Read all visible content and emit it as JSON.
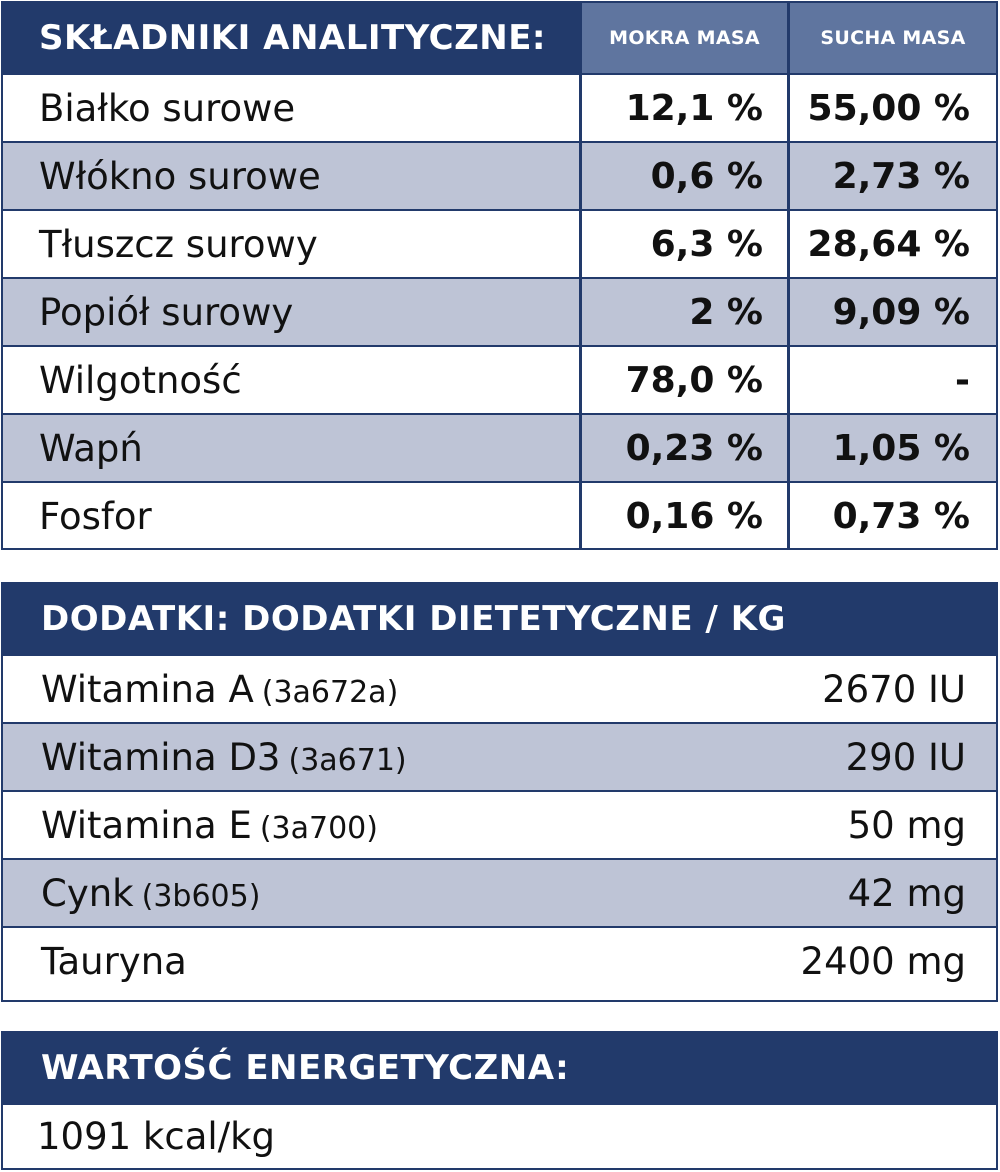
{
  "analytical": {
    "title": "SKŁADNIKI ANALITYCZNE:",
    "col_wet": "MOKRA MASA",
    "col_dry": "SUCHA MASA",
    "rows": [
      {
        "name": "Białko surowe",
        "wet": "12,1 %",
        "dry": "55,00 %"
      },
      {
        "name": "Włókno surowe",
        "wet": "0,6 %",
        "dry": "2,73 %"
      },
      {
        "name": "Tłuszcz surowy",
        "wet": "6,3 %",
        "dry": "28,64 %"
      },
      {
        "name": "Popiół surowy",
        "wet": "2 %",
        "dry": "9,09 %"
      },
      {
        "name": "Wilgotność",
        "wet": "78,0 %",
        "dry": "-"
      },
      {
        "name": "Wapń",
        "wet": "0,23 %",
        "dry": "1,05 %"
      },
      {
        "name": "Fosfor",
        "wet": "0,16 %",
        "dry": "0,73 %"
      }
    ]
  },
  "additives": {
    "title": "DODATKI: DODATKI DIETETYCZNE / KG",
    "rows": [
      {
        "name": "Witamina A",
        "code": "(3a672a)",
        "value": "2670 IU"
      },
      {
        "name": "Witamina D3",
        "code": "(3a671)",
        "value": "290 IU"
      },
      {
        "name": "Witamina E",
        "code": "(3a700)",
        "value": "50 mg"
      },
      {
        "name": "Cynk",
        "code": "(3b605)",
        "value": "42 mg"
      },
      {
        "name": "Tauryna",
        "code": "",
        "value": "2400 mg"
      }
    ]
  },
  "energy": {
    "title": "WARTOŚĆ ENERGETYCZNA:",
    "value": "1091 kcal/kg"
  },
  "colors": {
    "header_navy": "#223a6b",
    "subheader_blue": "#5f759f",
    "row_alt": "#bec4d6"
  }
}
